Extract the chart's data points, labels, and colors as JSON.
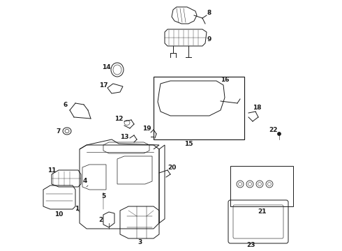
{
  "bg_color": "#ffffff",
  "line_color": "#1a1a1a",
  "label_color": "#1a1a1a",
  "label_fontsize": 6.5,
  "lw": 0.7
}
